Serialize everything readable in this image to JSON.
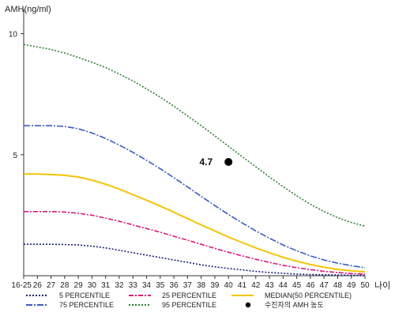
{
  "chart_data": {
    "type": "line",
    "ylabel": "AMH(ng/ml)",
    "xlabel": "나이",
    "ylim": [
      0,
      11
    ],
    "yticks": [
      5,
      10
    ],
    "xlim": [
      25,
      50
    ],
    "x_tick_labels": [
      "16-25",
      "26",
      "27",
      "28",
      "29",
      "30",
      "31",
      "32",
      "33",
      "34",
      "35",
      "36",
      "37",
      "38",
      "39",
      "40",
      "41",
      "42",
      "43",
      "44",
      "45",
      "46",
      "47",
      "48",
      "49",
      "50"
    ],
    "x": [
      25,
      26,
      27,
      28,
      29,
      30,
      31,
      32,
      33,
      34,
      35,
      36,
      37,
      38,
      39,
      40,
      41,
      42,
      43,
      44,
      45,
      46,
      47,
      48,
      49,
      50
    ],
    "series": [
      {
        "name": "5 PERCENTILE",
        "color": "#1a237e",
        "dash": "2,2",
        "values": [
          1.3,
          1.3,
          1.3,
          1.29,
          1.27,
          1.22,
          1.15,
          1.05,
          0.95,
          0.85,
          0.75,
          0.65,
          0.55,
          0.45,
          0.37,
          0.3,
          0.24,
          0.18,
          0.13,
          0.1,
          0.07,
          0.05,
          0.04,
          0.03,
          0.02,
          0.02
        ]
      },
      {
        "name": "25 PERCENTILE",
        "color": "#e0177a",
        "dash": "6,2,2,2",
        "values": [
          2.65,
          2.65,
          2.65,
          2.63,
          2.58,
          2.5,
          2.38,
          2.25,
          2.1,
          1.95,
          1.8,
          1.63,
          1.47,
          1.3,
          1.13,
          0.97,
          0.82,
          0.68,
          0.55,
          0.43,
          0.33,
          0.25,
          0.18,
          0.13,
          0.09,
          0.07
        ]
      },
      {
        "name": "MEDIAN(50 PERCENTILE)",
        "color": "#f5c400",
        "dash": "",
        "values": [
          4.2,
          4.2,
          4.18,
          4.15,
          4.08,
          3.95,
          3.78,
          3.58,
          3.35,
          3.12,
          2.88,
          2.62,
          2.36,
          2.1,
          1.85,
          1.6,
          1.37,
          1.15,
          0.95,
          0.76,
          0.6,
          0.46,
          0.35,
          0.26,
          0.2,
          0.16
        ]
      },
      {
        "name": "75 PERCENTILE",
        "color": "#3a5bc7",
        "dash": "8,2,2,2",
        "values": [
          6.2,
          6.2,
          6.2,
          6.17,
          6.07,
          5.9,
          5.67,
          5.4,
          5.1,
          4.77,
          4.42,
          4.05,
          3.67,
          3.28,
          2.9,
          2.53,
          2.18,
          1.85,
          1.55,
          1.27,
          1.03,
          0.82,
          0.65,
          0.52,
          0.41,
          0.33
        ]
      },
      {
        "name": "95 PERCENTILE",
        "color": "#2e7d32",
        "dash": "2,2",
        "values": [
          9.55,
          9.45,
          9.35,
          9.2,
          9.02,
          8.82,
          8.6,
          8.33,
          8.05,
          7.72,
          7.38,
          7.0,
          6.6,
          6.2,
          5.78,
          5.35,
          4.92,
          4.5,
          4.08,
          3.68,
          3.3,
          2.95,
          2.65,
          2.4,
          2.2,
          2.05
        ]
      }
    ],
    "patient_point": {
      "x": 40,
      "y": 4.7,
      "label": "4.7",
      "legend": "수진자의 AMH 농도"
    },
    "grid": false,
    "legend_position": "bottom"
  }
}
